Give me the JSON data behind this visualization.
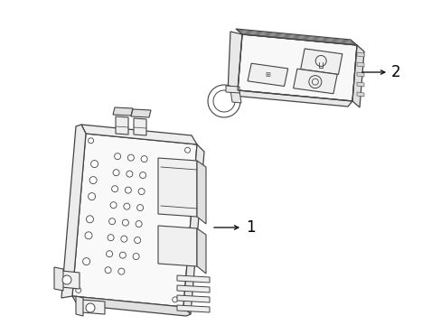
{
  "background_color": "#ffffff",
  "line_color": "#444444",
  "label_color": "#000000",
  "figsize": [
    4.89,
    3.6
  ],
  "dpi": 100,
  "label1_text": "1",
  "label2_text": "2"
}
